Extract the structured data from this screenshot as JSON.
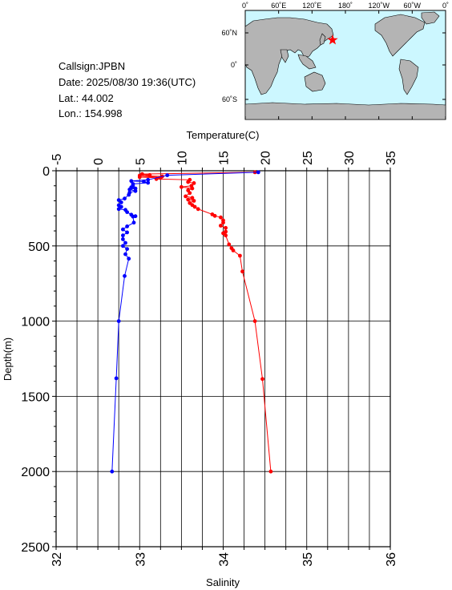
{
  "info": {
    "callsign": "Callsign:JPBN",
    "date": "Date:  2025/08/30 19:36(UTC)",
    "lat": "Lat.:  44.002",
    "lon": "Lon.:  154.998"
  },
  "map": {
    "top_labels": [
      "0˚",
      "60˚E",
      "120˚E",
      "180˚",
      "120˚W",
      "60˚W",
      "0˚"
    ],
    "lat_labels": [
      "60˚N",
      "0˚",
      "60˚S"
    ],
    "station_marker": "red-star",
    "ocean_color": "#ccf7ff",
    "land_color": "#b4b4b4"
  },
  "chart_data": {
    "type": "line",
    "title": "",
    "ylabel": "Depth(m)",
    "ylim": [
      2500,
      0
    ],
    "yticks": [
      "0",
      "500",
      "1000",
      "1500",
      "2000",
      "2500"
    ],
    "grid": true,
    "temperature_axis": {
      "label": "Temperature(C)",
      "position": "top",
      "range": [
        -5,
        35
      ],
      "ticks": [
        "-5",
        "0",
        "5",
        "10",
        "15",
        "20",
        "25",
        "30",
        "35"
      ]
    },
    "salinity_axis": {
      "label": "Salinity",
      "position": "bottom",
      "range": [
        32,
        36
      ],
      "ticks": [
        "32",
        "33",
        "34",
        "35",
        "36"
      ]
    },
    "series": [
      {
        "name": "Temperature",
        "axis": "temperature",
        "color": "#ff0000",
        "points": [
          [
            18.8,
            10
          ],
          [
            5.3,
            22
          ],
          [
            6.2,
            28
          ],
          [
            5.0,
            32
          ],
          [
            7.7,
            38
          ],
          [
            5.0,
            42
          ],
          [
            7.5,
            48
          ],
          [
            7.0,
            55
          ],
          [
            11.0,
            60
          ],
          [
            10.8,
            75
          ],
          [
            11.5,
            82
          ],
          [
            11.2,
            100
          ],
          [
            10.0,
            108
          ],
          [
            11.3,
            118
          ],
          [
            10.8,
            130
          ],
          [
            11.0,
            148
          ],
          [
            10.5,
            170
          ],
          [
            11.3,
            180
          ],
          [
            10.8,
            192
          ],
          [
            11.5,
            200
          ],
          [
            11.0,
            215
          ],
          [
            11.3,
            228
          ],
          [
            11.6,
            240
          ],
          [
            12.0,
            255
          ],
          [
            13.7,
            290
          ],
          [
            14.0,
            300
          ],
          [
            14.7,
            310
          ],
          [
            15.0,
            330
          ],
          [
            15.0,
            345
          ],
          [
            14.7,
            365
          ],
          [
            15.3,
            380
          ],
          [
            15.3,
            405
          ],
          [
            15.0,
            415
          ],
          [
            15.3,
            430
          ],
          [
            15.7,
            490
          ],
          [
            16.0,
            515
          ],
          [
            16.2,
            530
          ],
          [
            17.0,
            565
          ],
          [
            17.3,
            670
          ],
          [
            18.8,
            1000
          ],
          [
            19.7,
            1385
          ],
          [
            20.7,
            2000
          ]
        ]
      },
      {
        "name": "Salinity",
        "axis": "salinity",
        "color": "#0000ff",
        "points": [
          [
            34.42,
            10
          ],
          [
            33.33,
            30
          ],
          [
            33.1,
            60
          ],
          [
            32.9,
            68
          ],
          [
            33.05,
            72
          ],
          [
            33.1,
            80
          ],
          [
            32.92,
            88
          ],
          [
            32.92,
            100
          ],
          [
            32.9,
            110
          ],
          [
            32.95,
            118
          ],
          [
            32.88,
            125
          ],
          [
            32.95,
            135
          ],
          [
            32.88,
            145
          ],
          [
            32.87,
            160
          ],
          [
            32.82,
            185
          ],
          [
            32.75,
            195
          ],
          [
            32.78,
            210
          ],
          [
            32.75,
            230
          ],
          [
            32.78,
            240
          ],
          [
            32.75,
            255
          ],
          [
            32.83,
            260
          ],
          [
            32.85,
            275
          ],
          [
            32.9,
            292
          ],
          [
            32.95,
            302
          ],
          [
            32.92,
            305
          ],
          [
            32.93,
            345
          ],
          [
            32.85,
            370
          ],
          [
            32.8,
            390
          ],
          [
            32.85,
            410
          ],
          [
            32.8,
            430
          ],
          [
            32.8,
            455
          ],
          [
            32.83,
            480
          ],
          [
            32.8,
            500
          ],
          [
            32.85,
            520
          ],
          [
            32.83,
            555
          ],
          [
            32.87,
            585
          ],
          [
            32.82,
            700
          ],
          [
            32.75,
            1000
          ],
          [
            32.72,
            1380
          ],
          [
            32.67,
            2000
          ]
        ]
      }
    ]
  }
}
